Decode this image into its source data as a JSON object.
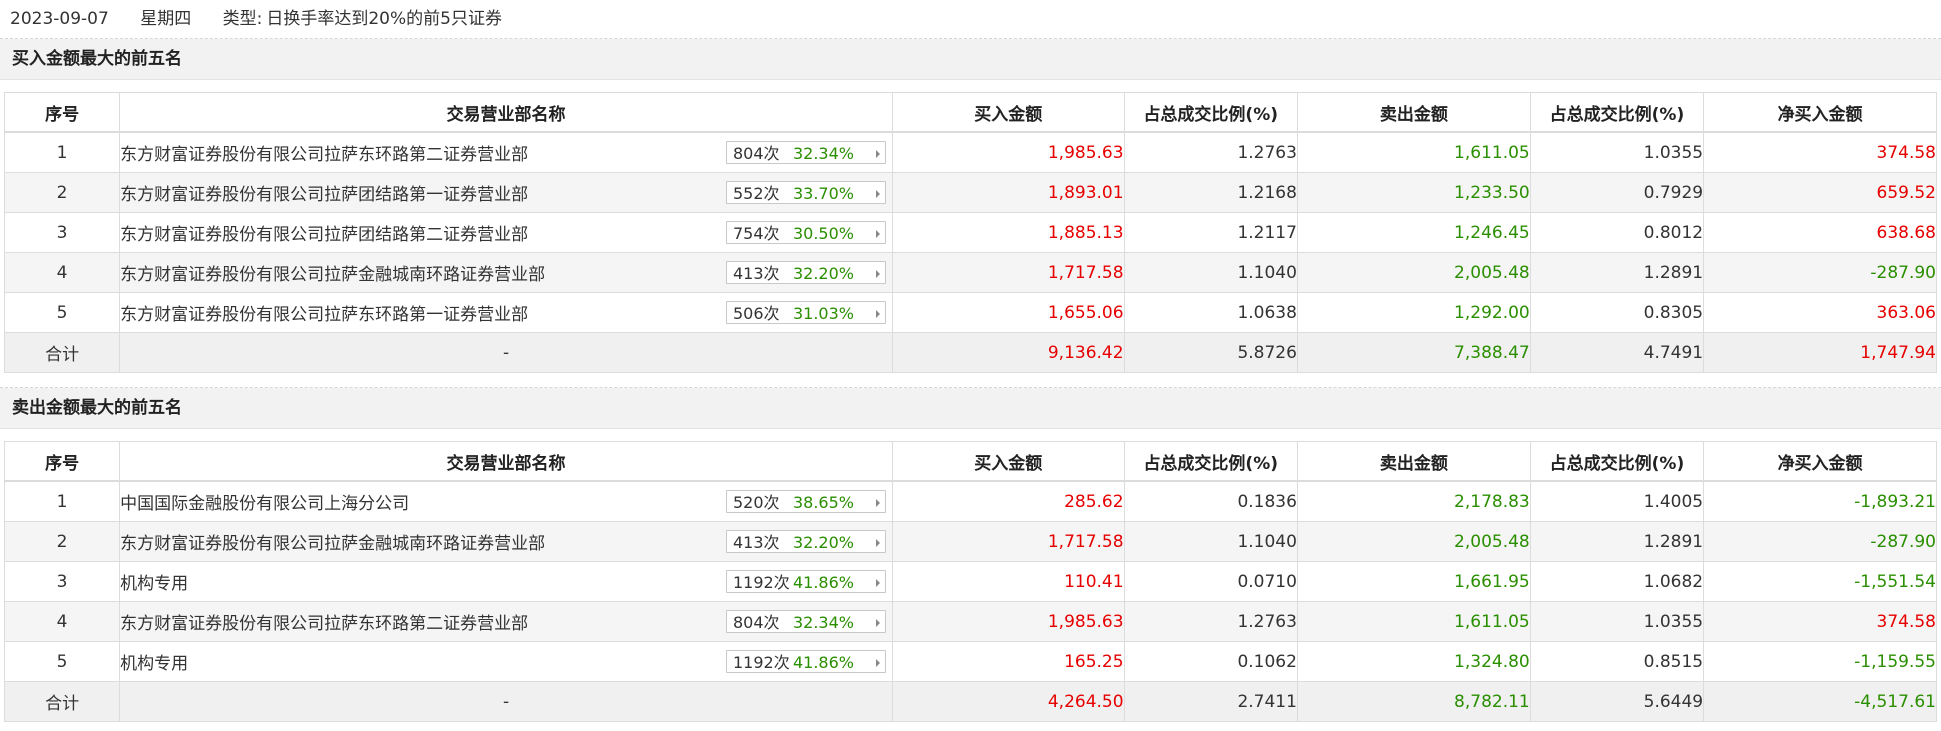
{
  "header": {
    "date": "2023-09-07",
    "weekday": "星期四",
    "type_label": "类型:",
    "type_value": "日换手率达到20%的前5只证券"
  },
  "columns": [
    "序号",
    "交易营业部名称",
    "买入金额",
    "占总成交比例(%)",
    "卖出金额",
    "占总成交比例(%)",
    "净买入金额"
  ],
  "buy_section": {
    "title": "买入金额最大的前五名",
    "rows": [
      {
        "idx": "1",
        "name": "东方财富证券股份有限公司拉萨东环路第二证券营业部",
        "count": "804次",
        "pct": "32.34%",
        "buy": "1,985.63",
        "buy_ratio": "1.2763",
        "sell": "1,611.05",
        "sell_ratio": "1.0355",
        "net": "374.58",
        "net_color": "red"
      },
      {
        "idx": "2",
        "name": "东方财富证券股份有限公司拉萨团结路第一证券营业部",
        "count": "552次",
        "pct": "33.70%",
        "buy": "1,893.01",
        "buy_ratio": "1.2168",
        "sell": "1,233.50",
        "sell_ratio": "0.7929",
        "net": "659.52",
        "net_color": "red"
      },
      {
        "idx": "3",
        "name": "东方财富证券股份有限公司拉萨团结路第二证券营业部",
        "count": "754次",
        "pct": "30.50%",
        "buy": "1,885.13",
        "buy_ratio": "1.2117",
        "sell": "1,246.45",
        "sell_ratio": "0.8012",
        "net": "638.68",
        "net_color": "red"
      },
      {
        "idx": "4",
        "name": "东方财富证券股份有限公司拉萨金融城南环路证券营业部",
        "count": "413次",
        "pct": "32.20%",
        "buy": "1,717.58",
        "buy_ratio": "1.1040",
        "sell": "2,005.48",
        "sell_ratio": "1.2891",
        "net": "-287.90",
        "net_color": "green"
      },
      {
        "idx": "5",
        "name": "东方财富证券股份有限公司拉萨东环路第一证券营业部",
        "count": "506次",
        "pct": "31.03%",
        "buy": "1,655.06",
        "buy_ratio": "1.0638",
        "sell": "1,292.00",
        "sell_ratio": "0.8305",
        "net": "363.06",
        "net_color": "red"
      }
    ],
    "total": {
      "label": "合计",
      "name": "-",
      "buy": "9,136.42",
      "buy_ratio": "5.8726",
      "sell": "7,388.47",
      "sell_ratio": "4.7491",
      "net": "1,747.94",
      "net_color": "red"
    }
  },
  "sell_section": {
    "title": "卖出金额最大的前五名",
    "rows": [
      {
        "idx": "1",
        "name": "中国国际金融股份有限公司上海分公司",
        "count": "520次",
        "pct": "38.65%",
        "buy": "285.62",
        "buy_ratio": "0.1836",
        "sell": "2,178.83",
        "sell_ratio": "1.4005",
        "net": "-1,893.21",
        "net_color": "green"
      },
      {
        "idx": "2",
        "name": "东方财富证券股份有限公司拉萨金融城南环路证券营业部",
        "count": "413次",
        "pct": "32.20%",
        "buy": "1,717.58",
        "buy_ratio": "1.1040",
        "sell": "2,005.48",
        "sell_ratio": "1.2891",
        "net": "-287.90",
        "net_color": "green"
      },
      {
        "idx": "3",
        "name": "机构专用",
        "count": "1192次",
        "pct": "41.86%",
        "buy": "110.41",
        "buy_ratio": "0.0710",
        "sell": "1,661.95",
        "sell_ratio": "1.0682",
        "net": "-1,551.54",
        "net_color": "green"
      },
      {
        "idx": "4",
        "name": "东方财富证券股份有限公司拉萨东环路第二证券营业部",
        "count": "804次",
        "pct": "32.34%",
        "buy": "1,985.63",
        "buy_ratio": "1.2763",
        "sell": "1,611.05",
        "sell_ratio": "1.0355",
        "net": "374.58",
        "net_color": "red"
      },
      {
        "idx": "5",
        "name": "机构专用",
        "count": "1192次",
        "pct": "41.86%",
        "buy": "165.25",
        "buy_ratio": "0.1062",
        "sell": "1,324.80",
        "sell_ratio": "0.8515",
        "net": "-1,159.55",
        "net_color": "green"
      }
    ],
    "total": {
      "label": "合计",
      "name": "-",
      "buy": "4,264.50",
      "buy_ratio": "2.7411",
      "sell": "8,782.11",
      "sell_ratio": "5.6449",
      "net": "-4,517.61",
      "net_color": "green"
    }
  },
  "colors": {
    "red": "#e60000",
    "green": "#2a8f00",
    "section_bg": "#f2f2f2",
    "stripe_bg": "#f5f5f5"
  }
}
